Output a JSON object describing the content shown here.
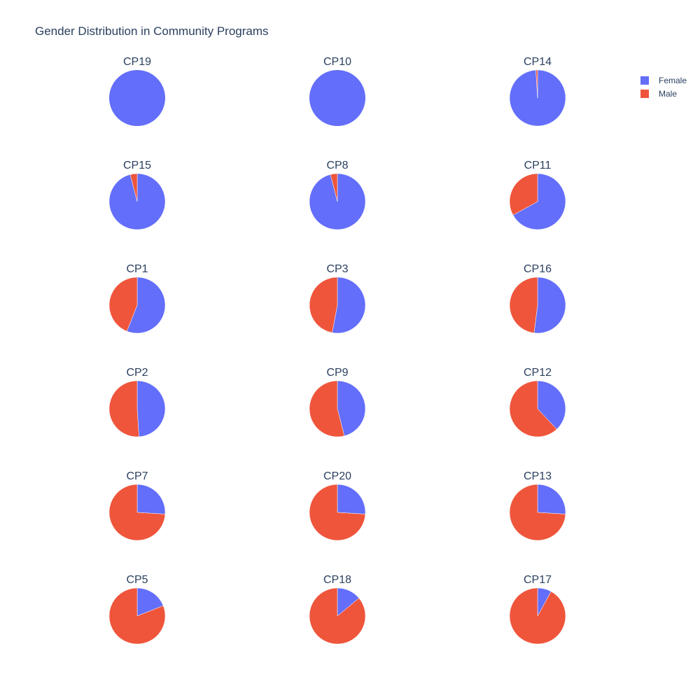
{
  "chart_data": {
    "type": "pie",
    "title": "Gender Distribution in Community Programs",
    "legend": {
      "placement": "top-right",
      "entries": [
        {
          "name": "Female",
          "color": "#636efa"
        },
        {
          "name": "Male",
          "color": "#ef553b"
        }
      ]
    },
    "series_order": [
      "Female",
      "Male"
    ],
    "rotation_start": "12 o'clock",
    "direction": "clockwise",
    "programs": [
      {
        "name": "CP19",
        "values": {
          "Female": 100,
          "Male": 0
        }
      },
      {
        "name": "CP10",
        "values": {
          "Female": 100,
          "Male": 0
        }
      },
      {
        "name": "CP14",
        "values": {
          "Female": 99,
          "Male": 1
        }
      },
      {
        "name": "CP15",
        "values": {
          "Female": 96,
          "Male": 4
        }
      },
      {
        "name": "CP8",
        "values": {
          "Female": 96,
          "Male": 4
        }
      },
      {
        "name": "CP11",
        "values": {
          "Female": 67,
          "Male": 33
        }
      },
      {
        "name": "CP1",
        "values": {
          "Female": 56,
          "Male": 44
        }
      },
      {
        "name": "CP3",
        "values": {
          "Female": 53,
          "Male": 47
        }
      },
      {
        "name": "CP16",
        "values": {
          "Female": 52,
          "Male": 48
        }
      },
      {
        "name": "CP2",
        "values": {
          "Female": 49,
          "Male": 51
        }
      },
      {
        "name": "CP9",
        "values": {
          "Female": 46,
          "Male": 54
        }
      },
      {
        "name": "CP12",
        "values": {
          "Female": 38,
          "Male": 62
        }
      },
      {
        "name": "CP7",
        "values": {
          "Female": 26,
          "Male": 74
        }
      },
      {
        "name": "CP20",
        "values": {
          "Female": 26,
          "Male": 74
        }
      },
      {
        "name": "CP13",
        "values": {
          "Female": 26,
          "Male": 74
        }
      },
      {
        "name": "CP5",
        "values": {
          "Female": 19,
          "Male": 81
        }
      },
      {
        "name": "CP18",
        "values": {
          "Female": 14,
          "Male": 86
        }
      },
      {
        "name": "CP17",
        "values": {
          "Female": 8,
          "Male": 92
        }
      }
    ]
  }
}
